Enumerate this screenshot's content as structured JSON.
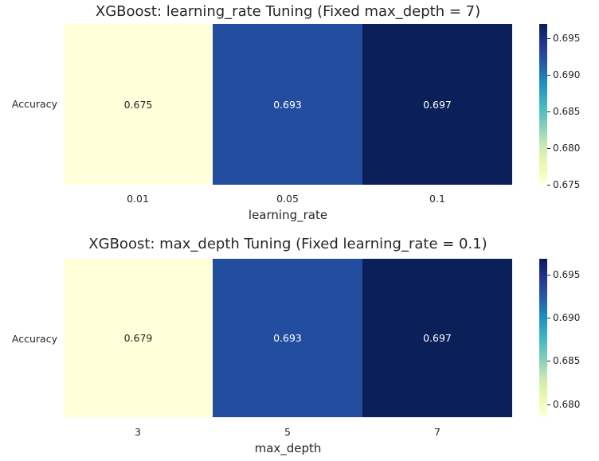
{
  "chart_data": [
    {
      "type": "heatmap",
      "title": "XGBoost: learning_rate Tuning (Fixed max_depth = 7)",
      "xlabel": "learning_rate",
      "ylabel": "",
      "rows": [
        "Accuracy"
      ],
      "categories": [
        "0.01",
        "0.05",
        "0.1"
      ],
      "values": [
        [
          0.675,
          0.693,
          0.697
        ]
      ],
      "cell_labels": [
        "0.675",
        "0.693",
        "0.697"
      ],
      "colormap": "YlGnBu",
      "colorbar": {
        "range": [
          0.675,
          0.697
        ],
        "ticks": [
          0.675,
          0.68,
          0.685,
          0.69,
          0.695
        ],
        "tick_labels": [
          "0.675",
          "0.680",
          "0.685",
          "0.690",
          "0.695"
        ]
      }
    },
    {
      "type": "heatmap",
      "title": "XGBoost: max_depth Tuning (Fixed learning_rate = 0.1)",
      "xlabel": "max_depth",
      "ylabel": "",
      "rows": [
        "Accuracy"
      ],
      "categories": [
        "3",
        "5",
        "7"
      ],
      "values": [
        [
          0.679,
          0.693,
          0.697
        ]
      ],
      "cell_labels": [
        "0.679",
        "0.693",
        "0.697"
      ],
      "colormap": "YlGnBu",
      "colorbar": {
        "range": [
          0.6785,
          0.6968
        ],
        "ticks": [
          0.68,
          0.685,
          0.69,
          0.695
        ],
        "tick_labels": [
          "0.680",
          "0.685",
          "0.690",
          "0.695"
        ]
      }
    }
  ],
  "colors": {
    "cell_colors": [
      "#ffffd9",
      "#234ea0",
      "#0b1f59"
    ],
    "colorbar_stops": [
      "#ffffd9",
      "#edf8b1",
      "#c7e9b4",
      "#7fcdbb",
      "#41b6c4",
      "#1d91c0",
      "#225ea8",
      "#253494",
      "#081d58"
    ],
    "text_on_light": "#262626",
    "text_on_dark": "#ffffff"
  }
}
